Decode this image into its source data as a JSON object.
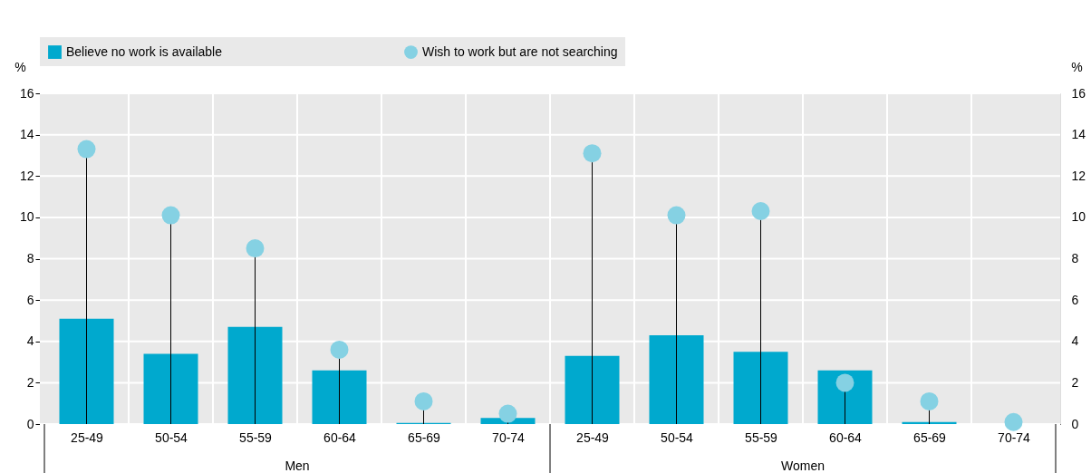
{
  "chart_data": {
    "type": "bar",
    "categories": [
      "25-49",
      "50-54",
      "55-59",
      "60-64",
      "65-69",
      "70-74",
      "25-49",
      "50-54",
      "55-59",
      "60-64",
      "65-69",
      "70-74"
    ],
    "series": [
      {
        "name": "Believe no work is available",
        "color": "#00a9ce",
        "values": [
          5.1,
          3.4,
          4.7,
          2.6,
          0.05,
          0.3,
          3.3,
          4.3,
          3.5,
          2.6,
          0.1,
          0.0
        ]
      },
      {
        "name": "Wish to work but are not searching",
        "type": "lollipop",
        "color": "#85d1e3",
        "values": [
          13.3,
          10.1,
          8.5,
          3.6,
          1.1,
          0.5,
          13.1,
          10.1,
          10.3,
          2.0,
          1.1,
          0.1
        ]
      }
    ],
    "annotations": [
      "Men",
      "Women"
    ],
    "ylabel": "%",
    "y2label": "%",
    "ylim": [
      0,
      16
    ],
    "yticks": [
      0,
      2,
      4,
      6,
      8,
      10,
      12,
      14,
      16
    ],
    "y2lim": [
      0,
      16
    ],
    "y2ticks": [
      0,
      2,
      4,
      6,
      8,
      10,
      12,
      14,
      16
    ],
    "grid": true,
    "legend": "top"
  }
}
